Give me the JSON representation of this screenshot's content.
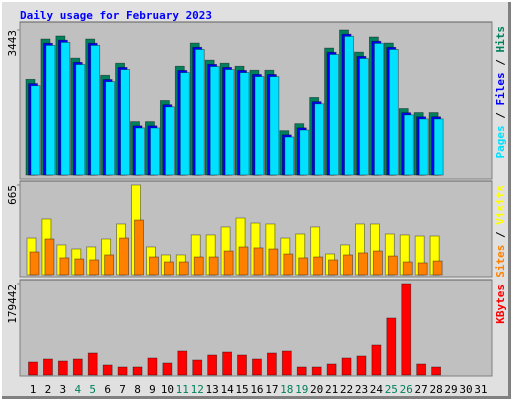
{
  "chart_data": [
    {
      "type": "bar",
      "title": "Daily usage for February 2023",
      "legend_separator": " / ",
      "ylim": [
        0,
        3443
      ],
      "yticks": [
        3443
      ],
      "series": [
        {
          "name": "Hits",
          "color": "#00805c",
          "values": [
            2271,
            3228,
            3300,
            2774,
            3228,
            2367,
            2654,
            1267,
            1267,
            1769,
            2582,
            3132,
            2726,
            2654,
            2582,
            2487,
            2487,
            1052,
            1219,
            1841,
            3013,
            3443,
            2917,
            3276,
            3132,
            1578,
            1482,
            1482,
            null,
            null,
            null
          ]
        },
        {
          "name": "Files",
          "color": "#0000ff",
          "values": [
            2171,
            3128,
            3200,
            2674,
            3128,
            2267,
            2554,
            1167,
            1167,
            1669,
            2482,
            3032,
            2626,
            2554,
            2482,
            2387,
            2387,
            952,
            1119,
            1741,
            2913,
            3343,
            2817,
            3176,
            3032,
            1478,
            1382,
            1382,
            null,
            null,
            null
          ]
        },
        {
          "name": "Pages",
          "color": "#00e0ff",
          "values": [
            2121,
            3078,
            3150,
            2624,
            3078,
            2217,
            2504,
            1117,
            1117,
            1619,
            2432,
            2982,
            2576,
            2504,
            2432,
            2337,
            2337,
            902,
            1069,
            1691,
            2863,
            3293,
            2767,
            3126,
            2982,
            1428,
            1332,
            1332,
            null,
            null,
            null
          ]
        }
      ]
    },
    {
      "type": "bar",
      "legend_separator": " / ",
      "ylim": [
        0,
        665
      ],
      "yticks": [
        665
      ],
      "series": [
        {
          "name": "Visits",
          "color": "#ffff00",
          "values": [
            273,
            414,
            222,
            192,
            207,
            266,
            377,
            665,
            207,
            148,
            148,
            296,
            296,
            355,
            421,
            384,
            377,
            273,
            303,
            355,
            155,
            222,
            377,
            377,
            303,
            296,
            288,
            288,
            null,
            null,
            null
          ]
        },
        {
          "name": "Sites",
          "color": "#ff8000",
          "values": [
            170,
            266,
            126,
            118,
            111,
            148,
            273,
            406,
            133,
            96,
            96,
            133,
            133,
            177,
            207,
            200,
            192,
            155,
            126,
            133,
            111,
            148,
            163,
            177,
            140,
            96,
            89,
            103,
            null,
            null,
            null
          ]
        }
      ]
    },
    {
      "type": "bar",
      "ylim": [
        0,
        179442
      ],
      "yticks": [
        179442
      ],
      "categories": [
        "1",
        "2",
        "3",
        "4",
        "5",
        "6",
        "7",
        "8",
        "9",
        "10",
        "11",
        "12",
        "13",
        "14",
        "15",
        "16",
        "17",
        "18",
        "19",
        "20",
        "21",
        "22",
        "23",
        "24",
        "25",
        "26",
        "27",
        "28",
        "29",
        "30",
        "31"
      ],
      "category_colors": [
        "#000000",
        "#000000",
        "#000000",
        "#00805c",
        "#00805c",
        "#000000",
        "#000000",
        "#000000",
        "#000000",
        "#000000",
        "#00805c",
        "#00805c",
        "#000000",
        "#000000",
        "#000000",
        "#000000",
        "#000000",
        "#00805c",
        "#00805c",
        "#000000",
        "#000000",
        "#000000",
        "#000000",
        "#000000",
        "#00805c",
        "#00805c",
        "#000000",
        "#000000",
        "#000000",
        "#000000",
        "#000000"
      ],
      "series": [
        {
          "name": "KBytes",
          "color": "#ff0000",
          "values": [
            25636,
            31552,
            27608,
            31552,
            43384,
            19720,
            15776,
            15776,
            33524,
            23664,
            47328,
            29580,
            39440,
            45356,
            39440,
            31552,
            43384,
            47328,
            15776,
            15776,
            21692,
            33524,
            37468,
            59160,
            112404,
            179442,
            21692,
            15776,
            null,
            null,
            null
          ]
        }
      ]
    }
  ]
}
